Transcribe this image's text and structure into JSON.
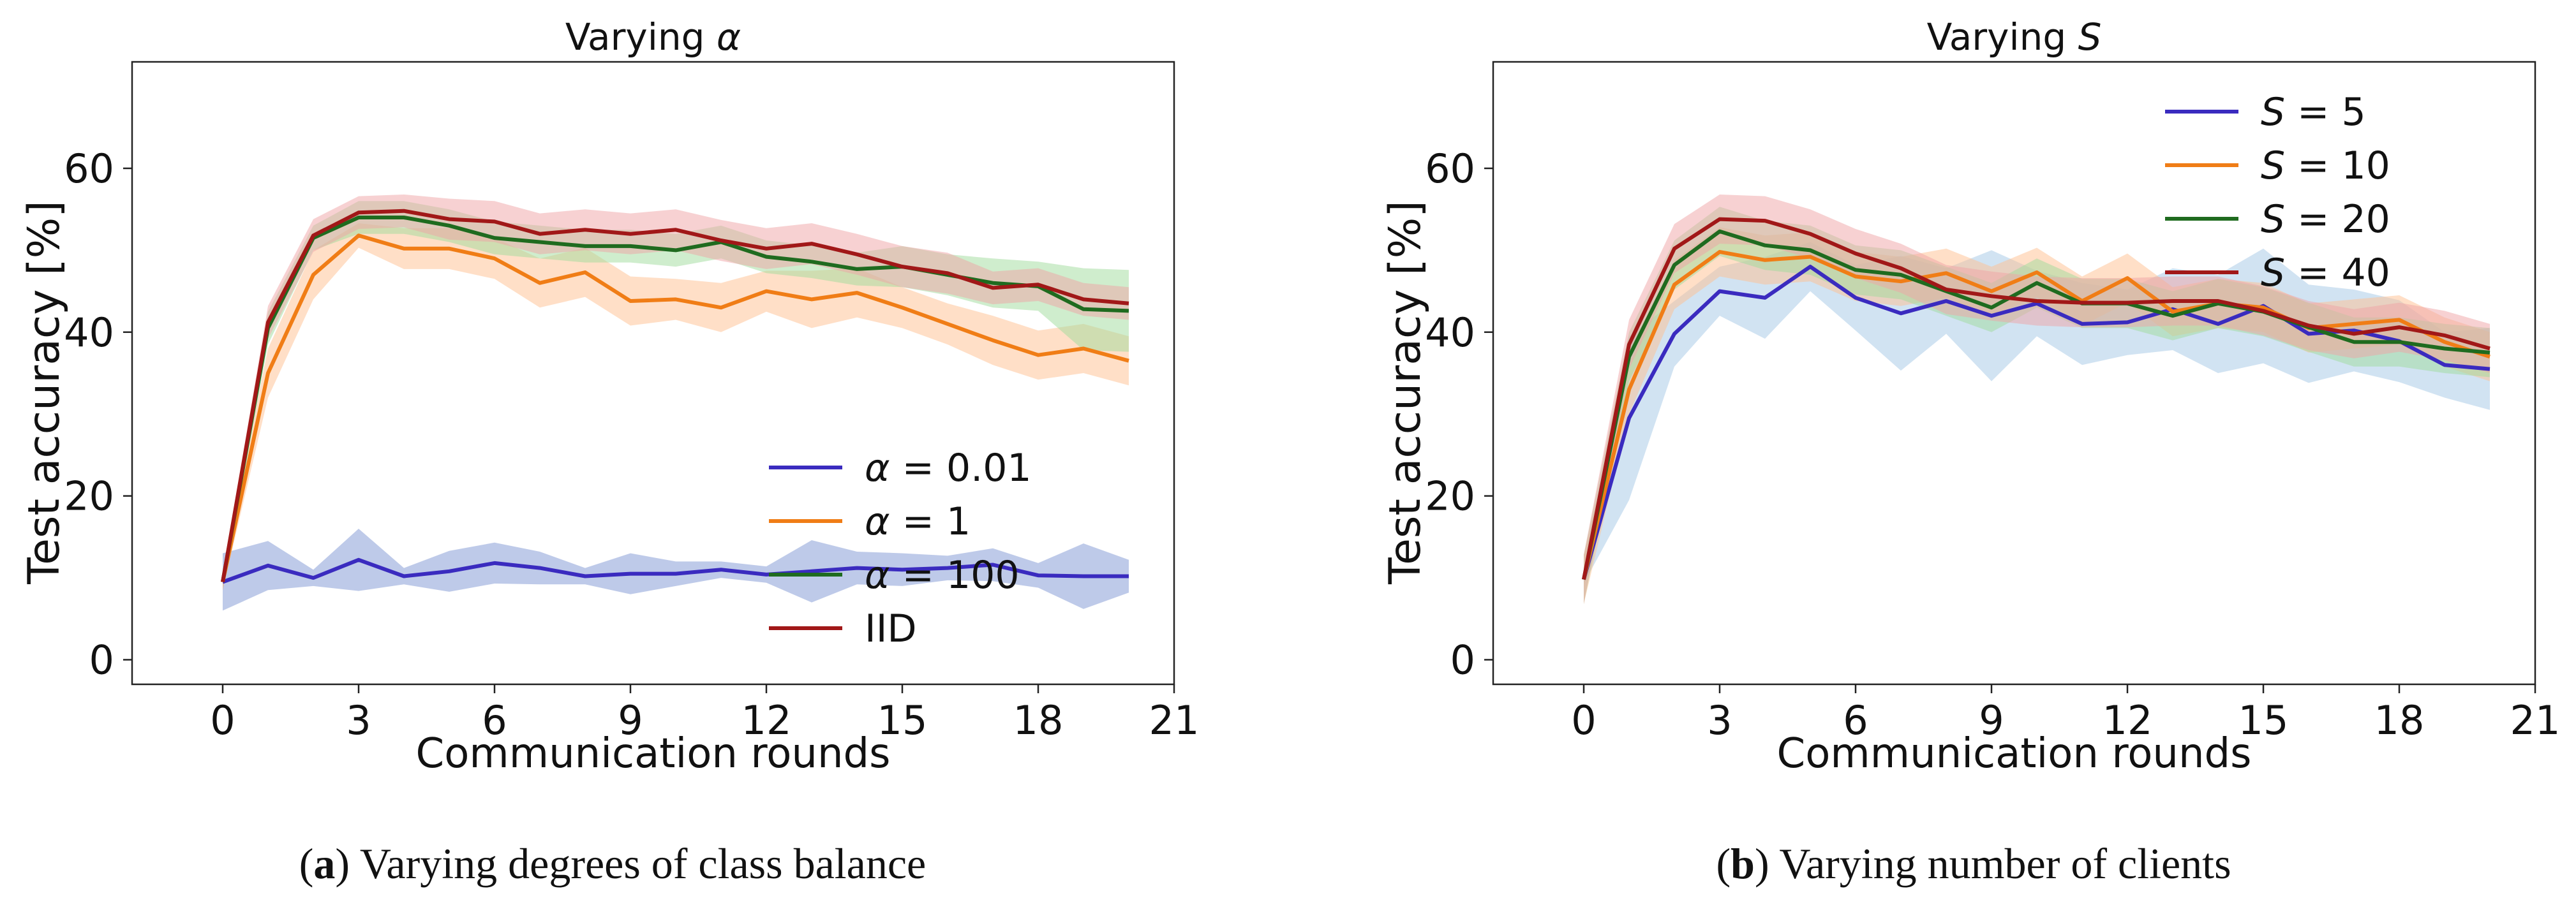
{
  "chart_data": [
    {
      "type": "line",
      "title": "Varying α",
      "xlabel": "Communication rounds",
      "ylabel": "Test accuracy [%]",
      "xlim": [
        -2,
        21
      ],
      "ylim": [
        -3,
        73
      ],
      "xticks": [
        0,
        3,
        6,
        9,
        12,
        15,
        18,
        21
      ],
      "yticks": [
        0,
        20,
        40,
        60
      ],
      "grid": false,
      "shaded_bands": true,
      "legend_position": "lower-right",
      "x": [
        0,
        1,
        2,
        3,
        4,
        5,
        6,
        7,
        8,
        9,
        10,
        11,
        12,
        13,
        14,
        15,
        16,
        17,
        18,
        19,
        20
      ],
      "series": [
        {
          "name": "α = 0.01",
          "color": "#3a2bbf",
          "band_color": "#7e95d4",
          "values": [
            9.5,
            11.5,
            10,
            12.2,
            10.2,
            10.8,
            11.8,
            11.2,
            10.2,
            10.5,
            10.5,
            11,
            10.4,
            10.8,
            11.2,
            11,
            11.2,
            11.6,
            10.3,
            10.2,
            10.2
          ],
          "band": [
            3.5,
            3,
            1,
            3.8,
            1,
            2.5,
            2.5,
            2,
            1,
            2.5,
            1.5,
            1,
            1,
            3.8,
            2,
            2,
            1.5,
            2,
            1.5,
            4,
            2
          ]
        },
        {
          "name": "α = 1",
          "color": "#f07d16",
          "band_color": "#ffc08f",
          "values": [
            9.5,
            35,
            47,
            51.8,
            50.2,
            50.2,
            49,
            46,
            47.3,
            43.8,
            44,
            43,
            45,
            44,
            44.8,
            43,
            41,
            39,
            37.2,
            38,
            36.5
          ],
          "band": [
            1,
            3,
            3,
            1.5,
            2.5,
            2.5,
            2.5,
            3,
            3,
            3,
            2.5,
            3,
            2.5,
            3.5,
            3,
            2.5,
            2.5,
            3,
            3,
            3,
            3
          ]
        },
        {
          "name": "α = 100",
          "color": "#1f6b1f",
          "band_color": "#9fdb9b",
          "values": [
            9.5,
            40.5,
            51.5,
            54,
            54,
            53,
            51.5,
            51,
            50.5,
            50.5,
            50,
            51,
            49.2,
            48.6,
            47.7,
            48,
            47,
            46,
            45.6,
            42.8,
            42.6
          ],
          "band": [
            1,
            2,
            1.5,
            2,
            2,
            2,
            2,
            2,
            2,
            2,
            2,
            2,
            2,
            2,
            2,
            2.5,
            2.5,
            3,
            3,
            5,
            5
          ]
        },
        {
          "name": "IID",
          "color": "#a11818",
          "band_color": "#f0a3a6",
          "values": [
            9.5,
            41.2,
            51.8,
            54.6,
            54.8,
            53.8,
            53.5,
            52,
            52.5,
            52,
            52.5,
            51.2,
            50.2,
            50.8,
            49.5,
            48,
            47.2,
            45.4,
            45.8,
            44,
            43.5
          ],
          "band": [
            1,
            2,
            2,
            2,
            2,
            2.5,
            2.5,
            2.5,
            2.5,
            2.5,
            2.5,
            2.5,
            2.5,
            2.5,
            2.5,
            2.5,
            2.5,
            2,
            2,
            2,
            2
          ]
        }
      ]
    },
    {
      "type": "line",
      "title": "Varying S",
      "xlabel": "Communication rounds",
      "ylabel": "Test accuracy [%]",
      "xlim": [
        -2,
        21
      ],
      "ylim": [
        -3,
        73
      ],
      "xticks": [
        0,
        3,
        6,
        9,
        12,
        15,
        18,
        21
      ],
      "yticks": [
        0,
        20,
        40,
        60
      ],
      "grid": false,
      "shaded_bands": true,
      "legend_position": "upper-right",
      "x": [
        0,
        1,
        2,
        3,
        4,
        5,
        6,
        7,
        8,
        9,
        10,
        11,
        12,
        13,
        14,
        15,
        16,
        17,
        18,
        19,
        20
      ],
      "series": [
        {
          "name": "S = 5",
          "color": "#3a2bbf",
          "band_color": "#a3c7e6",
          "values": [
            9.8,
            29.5,
            39.8,
            45,
            44.2,
            48,
            44.2,
            42.3,
            43.8,
            42,
            43.5,
            41,
            41.2,
            42.8,
            41,
            43.2,
            39.8,
            40.2,
            38.9,
            36,
            35.5
          ],
          "band": [
            0.5,
            10,
            4,
            3,
            5,
            3,
            4,
            7,
            4,
            8,
            4,
            5,
            4,
            5,
            6,
            7,
            6,
            5,
            5,
            4,
            5
          ]
        },
        {
          "name": "S = 10",
          "color": "#f07d16",
          "band_color": "#ffc08f",
          "values": [
            9.8,
            33,
            45.8,
            49.8,
            48.8,
            49.2,
            46.8,
            46.2,
            47.2,
            45,
            47.3,
            43.8,
            46.6,
            42.5,
            43.5,
            43,
            40.5,
            41,
            41.5,
            38.8,
            37
          ]
        },
        {
          "name": "S = 20",
          "color": "#1f6b1f",
          "band_color": "#9fdb9b",
          "values": [
            9.8,
            37,
            48.2,
            52.3,
            50.6,
            50,
            47.6,
            47,
            45,
            43,
            46,
            43.5,
            43.5,
            42,
            43.5,
            42.5,
            40.6,
            38.8,
            38.8,
            38,
            37.5
          ]
        },
        {
          "name": "S = 40",
          "color": "#a11818",
          "band_color": "#f0a3a6",
          "values": [
            9.8,
            38.5,
            50.2,
            53.8,
            53.6,
            52,
            49.6,
            47.8,
            45.2,
            44.4,
            43.8,
            43.6,
            43.6,
            43.8,
            43.8,
            42.6,
            40.8,
            39.8,
            40.6,
            39.6,
            38
          ]
        }
      ]
    }
  ],
  "captions": {
    "a_label": "a",
    "a_text": " Varying degrees of class balance",
    "b_label": "b",
    "b_text": " Varying number of clients"
  }
}
